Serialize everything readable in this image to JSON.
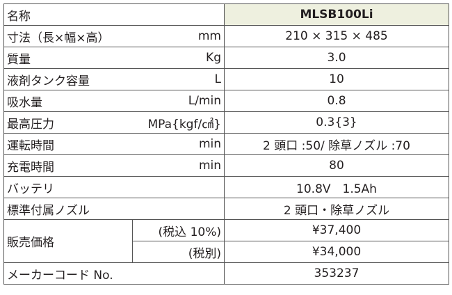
{
  "header": {
    "label": "名称",
    "model": "MLSB100Li"
  },
  "rows": [
    {
      "label": "寸法（長×幅×高）",
      "unit": "mm",
      "value": "210 × 315 × 485"
    },
    {
      "label": "質量",
      "unit": "Kg",
      "value": "3.0"
    },
    {
      "label": "液剤タンク容量",
      "unit": "L",
      "value": "10"
    },
    {
      "label": "吸水量",
      "unit": "L/min",
      "value": "0.8"
    },
    {
      "label": "最高圧力",
      "unit": "MPa{kgf/㎠}",
      "value": "0.3{3}"
    },
    {
      "label": "運転時間",
      "unit": "min",
      "value": "2 頭口 :50/ 除草ノズル :70"
    },
    {
      "label": "充電時間",
      "unit": "min",
      "value": "80"
    },
    {
      "label": "バッテリ",
      "unit": "",
      "value": "10.8V　1.5Ah"
    },
    {
      "label": "標準付属ノズル",
      "unit": "",
      "value": "2 頭口・除草ノズル"
    }
  ],
  "price": {
    "label": "販売価格",
    "rows": [
      {
        "unit": "(税込 10%)",
        "value": "¥37,400"
      },
      {
        "unit": "(税別)",
        "value": "¥34,000"
      }
    ]
  },
  "code": {
    "label": "メーカーコード No.",
    "value": "353237"
  }
}
